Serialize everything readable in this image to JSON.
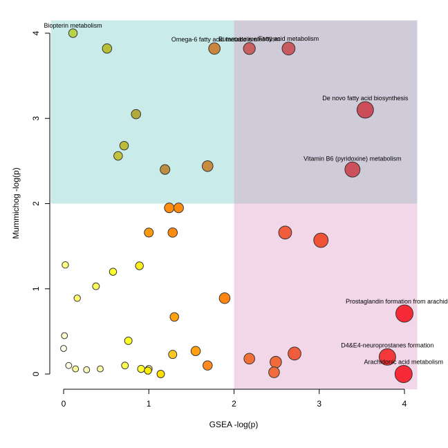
{
  "chart_data": {
    "type": "scatter",
    "xlabel": "GSEA -log(p)",
    "ylabel": "Mummichog -log(p)",
    "xlim": [
      -0.15,
      4.15
    ],
    "ylim": [
      -0.18,
      4.15
    ],
    "xticks": [
      "0",
      "1",
      "2",
      "3",
      "4"
    ],
    "yticks": [
      "0",
      "1",
      "2",
      "3",
      "4"
    ],
    "grid": false,
    "legend": "none",
    "quadrants": [
      {
        "x": [
          -0.15,
          2
        ],
        "y": [
          2,
          4.15
        ],
        "color": "#c9ecea"
      },
      {
        "x": [
          2,
          4.15
        ],
        "y": [
          2,
          4.15
        ],
        "color": "#d0cbd9"
      },
      {
        "x": [
          2,
          4.15
        ],
        "y": [
          -0.18,
          2
        ],
        "color": "#f1d7e7"
      }
    ],
    "points": [
      {
        "x": 0.11,
        "y": 4.0,
        "size": 1.2,
        "color": "#b8d24a",
        "label": "Biopterin metabolism"
      },
      {
        "x": 0.51,
        "y": 3.82,
        "size": 1.3,
        "color": "#b8c038"
      },
      {
        "x": 1.77,
        "y": 3.82,
        "size": 1.6,
        "color": "#c9853c",
        "label": "Omega-6 fatty acid metabolism"
      },
      {
        "x": 2.18,
        "y": 3.82,
        "size": 1.65,
        "color": "#c86060",
        "label": "Butanoate metabolism"
      },
      {
        "x": 2.64,
        "y": 3.82,
        "size": 1.8,
        "color": "#c85a60",
        "label": "Fatty acid metabolism"
      },
      {
        "x": 3.54,
        "y": 3.1,
        "size": 2.3,
        "color": "#cc4d5a",
        "label": "De novo fatty acid biosynthesis"
      },
      {
        "x": 0.85,
        "y": 3.05,
        "size": 1.3,
        "color": "#b2aa3a"
      },
      {
        "x": 0.71,
        "y": 2.68,
        "size": 1.2,
        "color": "#bdbb3c"
      },
      {
        "x": 0.64,
        "y": 2.56,
        "size": 1.2,
        "color": "#c3c23e"
      },
      {
        "x": 1.19,
        "y": 2.4,
        "size": 1.35,
        "color": "#bc8e40"
      },
      {
        "x": 1.69,
        "y": 2.44,
        "size": 1.5,
        "color": "#c98b3f"
      },
      {
        "x": 3.39,
        "y": 2.4,
        "size": 2.1,
        "color": "#cc505c",
        "label": "Vitamin B6 (pyridoxine) metabolism"
      },
      {
        "x": 1.24,
        "y": 1.95,
        "size": 1.35,
        "color": "#ff8c10"
      },
      {
        "x": 1.35,
        "y": 1.95,
        "size": 1.35,
        "color": "#ff8a10"
      },
      {
        "x": 1.0,
        "y": 1.66,
        "size": 1.25,
        "color": "#ff9a10"
      },
      {
        "x": 1.28,
        "y": 1.66,
        "size": 1.3,
        "color": "#ff8c10"
      },
      {
        "x": 2.6,
        "y": 1.66,
        "size": 1.8,
        "color": "#ef5d3c"
      },
      {
        "x": 3.02,
        "y": 1.57,
        "size": 2.0,
        "color": "#ef5236"
      },
      {
        "x": 0.02,
        "y": 1.28,
        "size": 0.9,
        "color": "#ffff80"
      },
      {
        "x": 0.89,
        "y": 1.27,
        "size": 1.1,
        "color": "#ffef1a"
      },
      {
        "x": 0.58,
        "y": 1.2,
        "size": 1.0,
        "color": "#ffff30"
      },
      {
        "x": 0.38,
        "y": 1.03,
        "size": 0.95,
        "color": "#ffff60"
      },
      {
        "x": 0.16,
        "y": 0.89,
        "size": 0.9,
        "color": "#ffff70"
      },
      {
        "x": 1.89,
        "y": 0.89,
        "size": 1.5,
        "color": "#ff8410"
      },
      {
        "x": 1.3,
        "y": 0.67,
        "size": 1.2,
        "color": "#ffa010"
      },
      {
        "x": 4.0,
        "y": 0.71,
        "size": 2.4,
        "color": "#f52a36",
        "label": "Prostaglandin formation from arachidonate"
      },
      {
        "x": 0.01,
        "y": 0.45,
        "size": 0.85,
        "color": "#ffffd0"
      },
      {
        "x": 0.76,
        "y": 0.39,
        "size": 1.05,
        "color": "#ffff28"
      },
      {
        "x": 0.0,
        "y": 0.3,
        "size": 0.85,
        "color": "#ffffee"
      },
      {
        "x": 1.55,
        "y": 0.27,
        "size": 1.3,
        "color": "#ffa010"
      },
      {
        "x": 1.28,
        "y": 0.23,
        "size": 1.15,
        "color": "#ffc820"
      },
      {
        "x": 2.71,
        "y": 0.24,
        "size": 1.8,
        "color": "#ef5d3c"
      },
      {
        "x": 3.8,
        "y": 0.2,
        "size": 2.3,
        "color": "#f5393a",
        "label": "D4&E4-neuroprostanes formation"
      },
      {
        "x": 2.18,
        "y": 0.18,
        "size": 1.5,
        "color": "#f07038"
      },
      {
        "x": 2.49,
        "y": 0.14,
        "size": 1.6,
        "color": "#f06a3a"
      },
      {
        "x": 0.06,
        "y": 0.1,
        "size": 0.85,
        "color": "#ffffe4"
      },
      {
        "x": 0.72,
        "y": 0.1,
        "size": 0.95,
        "color": "#ffff50"
      },
      {
        "x": 1.69,
        "y": 0.1,
        "size": 1.3,
        "color": "#ff8a20"
      },
      {
        "x": 0.14,
        "y": 0.06,
        "size": 0.85,
        "color": "#ffffa0"
      },
      {
        "x": 0.43,
        "y": 0.06,
        "size": 0.85,
        "color": "#ffffa8"
      },
      {
        "x": 0.91,
        "y": 0.06,
        "size": 1.0,
        "color": "#ffff30"
      },
      {
        "x": 1.0,
        "y": 0.06,
        "size": 0.95,
        "color": "#ffffa0"
      },
      {
        "x": 0.27,
        "y": 0.05,
        "size": 0.85,
        "color": "#ffffc0"
      },
      {
        "x": 0.99,
        "y": 0.04,
        "size": 1.0,
        "color": "#ffef00"
      },
      {
        "x": 2.47,
        "y": 0.02,
        "size": 1.5,
        "color": "#f06c3c"
      },
      {
        "x": 1.14,
        "y": 0.0,
        "size": 1.05,
        "color": "#ffe000"
      },
      {
        "x": 3.99,
        "y": 0.0,
        "size": 2.4,
        "color": "#f52a36",
        "label": "Arachidonic acid metabolism"
      }
    ]
  }
}
